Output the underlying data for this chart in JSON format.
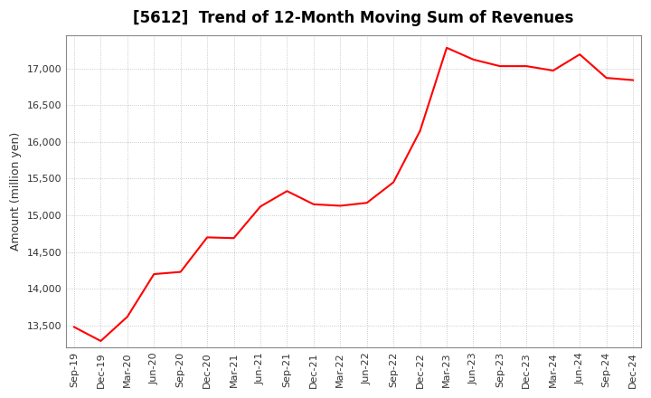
{
  "title": "[5612]  Trend of 12-Month Moving Sum of Revenues",
  "ylabel": "Amount (million yen)",
  "line_color": "#FF0000",
  "background_color": "#FFFFFF",
  "grid_color": "#AAAAAA",
  "plot_bg_color": "#FFFFFF",
  "x_labels": [
    "Sep-19",
    "Dec-19",
    "Mar-20",
    "Jun-20",
    "Sep-20",
    "Dec-20",
    "Mar-21",
    "Jun-21",
    "Sep-21",
    "Dec-21",
    "Mar-22",
    "Jun-22",
    "Sep-22",
    "Dec-22",
    "Mar-23",
    "Jun-23",
    "Sep-23",
    "Dec-23",
    "Mar-24",
    "Jun-24",
    "Sep-24",
    "Dec-24"
  ],
  "values": [
    13480,
    13290,
    13620,
    14200,
    14230,
    14700,
    14690,
    15120,
    15330,
    15150,
    15130,
    15170,
    15450,
    16150,
    17280,
    17120,
    17030,
    17030,
    16970,
    17190,
    16870,
    16840
  ],
  "ylim_min": 13200,
  "ylim_max": 17450,
  "yticks": [
    13500,
    14000,
    14500,
    15000,
    15500,
    16000,
    16500,
    17000
  ],
  "title_fontsize": 12,
  "ylabel_fontsize": 9,
  "tick_fontsize": 8
}
